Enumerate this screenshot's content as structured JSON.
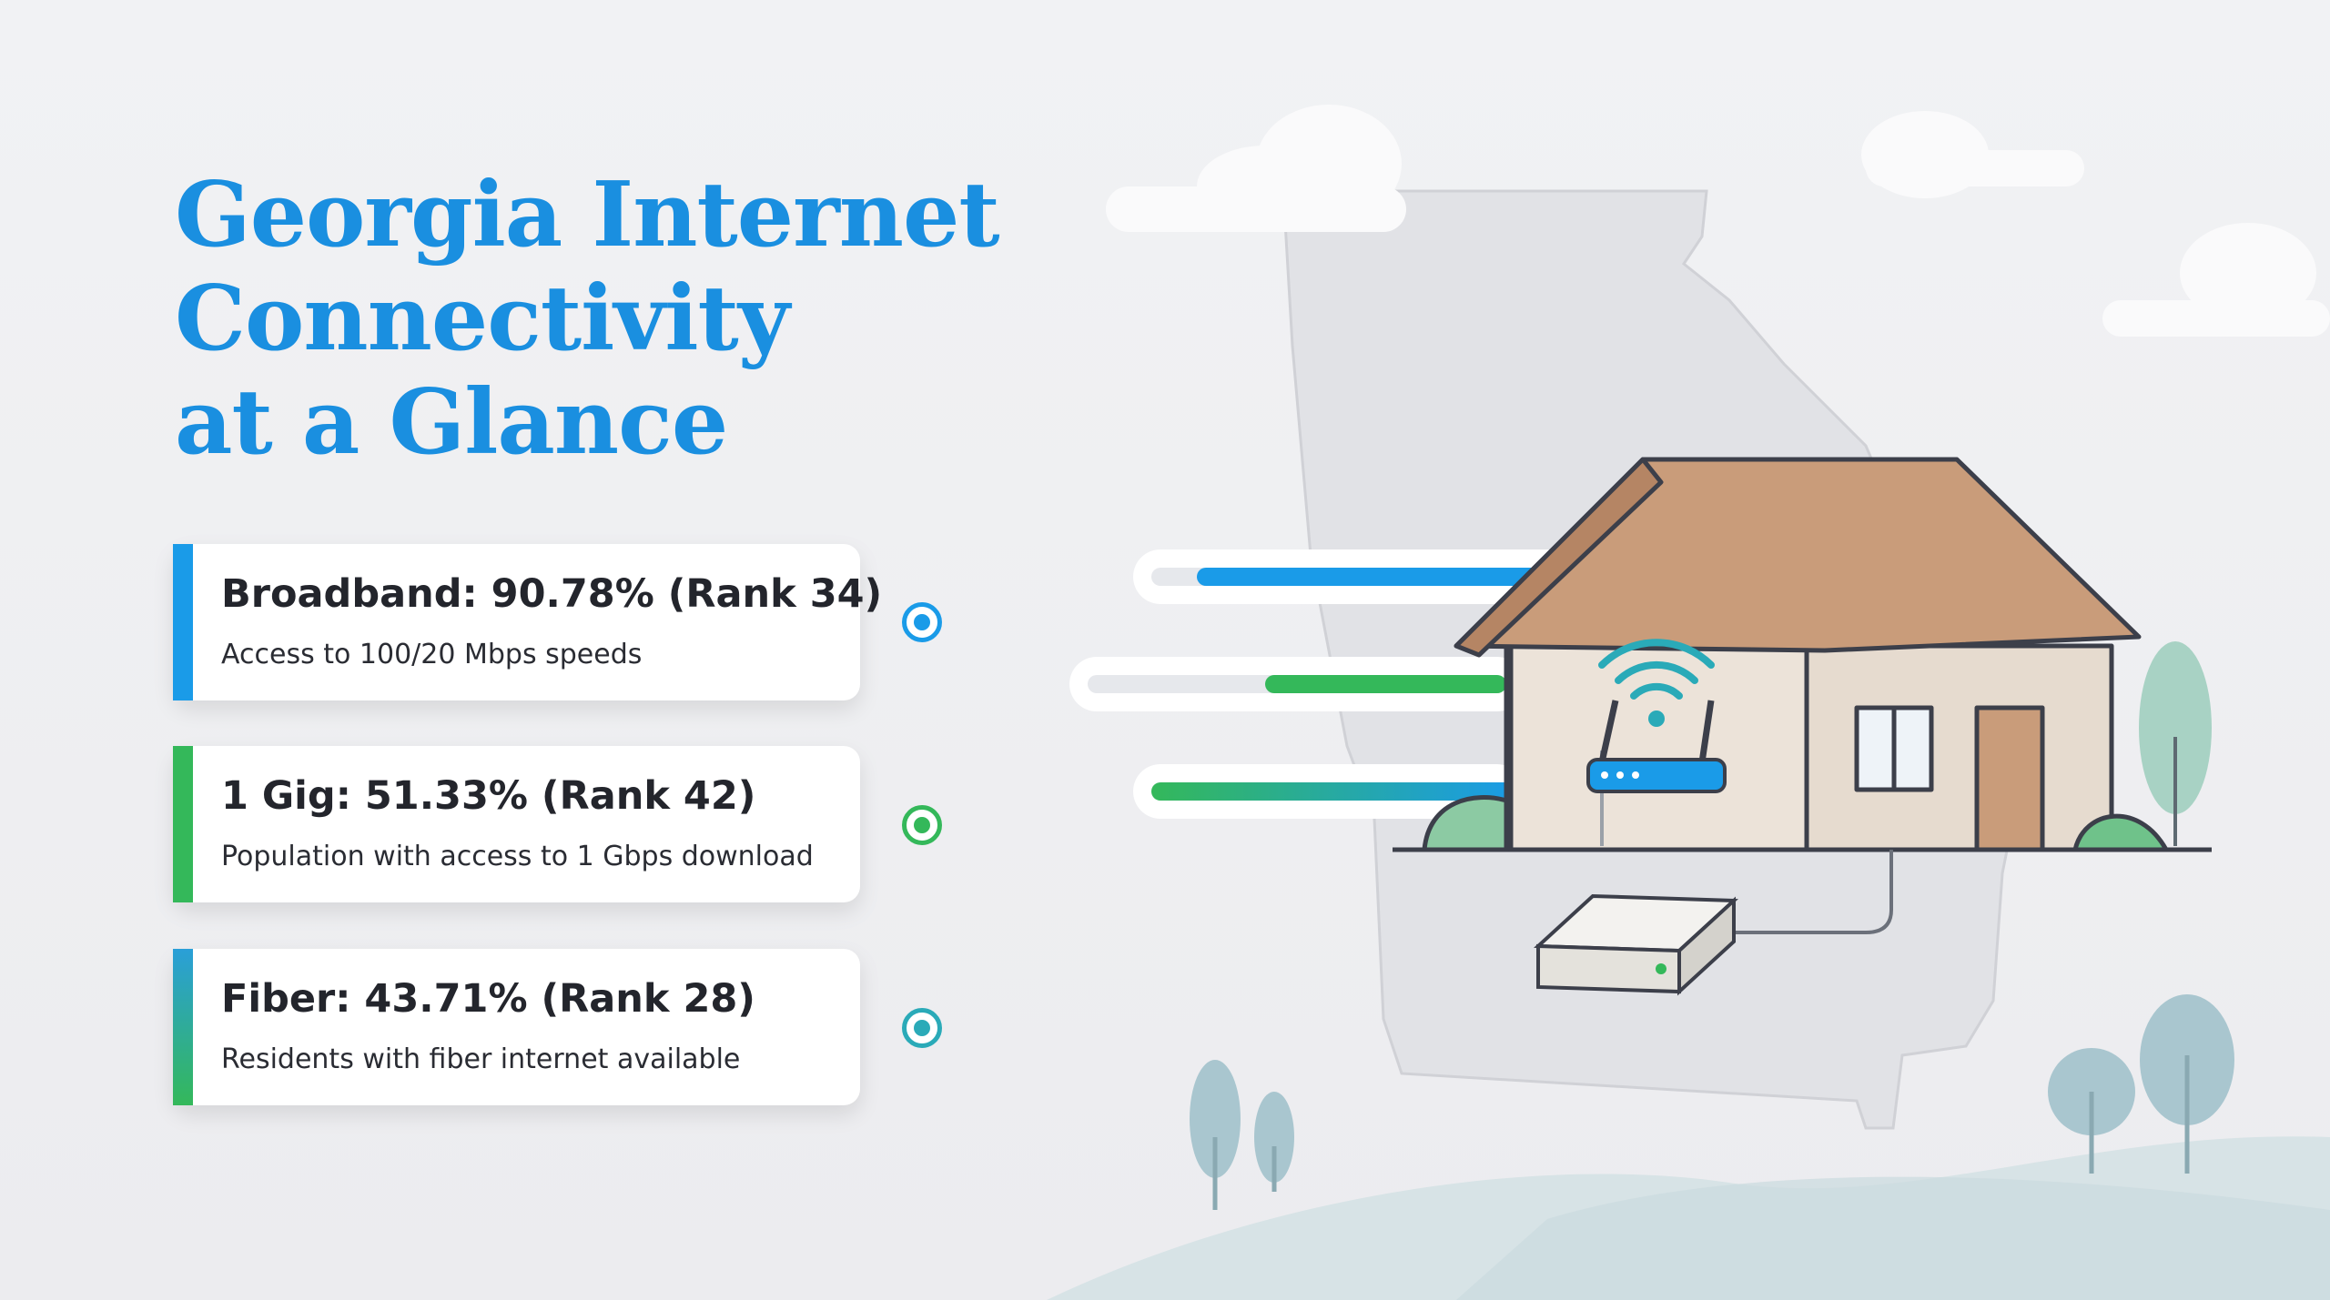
{
  "title": {
    "line1": "Georgia Internet",
    "line2": "Connectivity",
    "line3": "at a Glance"
  },
  "stats": [
    {
      "heading": "Broadband: 90.78% (Rank 34)",
      "subtext": "Access to 100/20 Mbps speeds",
      "percent": 90.78,
      "rank": 34,
      "color": "#1a9be8"
    },
    {
      "heading": "1 Gig: 51.33% (Rank 42)",
      "subtext": "Population with access to 1 Gbps download",
      "percent": 51.33,
      "rank": 42,
      "color": "#34b85a"
    },
    {
      "heading": "Fiber: 43.71% (Rank 28)",
      "subtext": "Residents with fiber internet available",
      "percent": 43.71,
      "rank": 28,
      "color": "#2aaab8"
    }
  ],
  "icons": [
    "target-dot-icon",
    "house-illustration",
    "wifi-router-icon",
    "modem-icon",
    "georgia-map",
    "cloud-icon",
    "tree-icon"
  ]
}
